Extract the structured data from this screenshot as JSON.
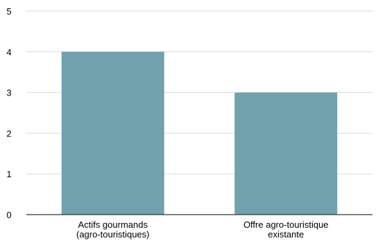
{
  "chart_data": {
    "type": "bar",
    "categories": [
      [
        "Actifs gourmands",
        "(agro-touristiques)"
      ],
      [
        "Offre agro-touristique",
        "existante"
      ]
    ],
    "values": [
      4,
      3
    ],
    "ylim": [
      0,
      5
    ],
    "yticks": [
      0,
      1,
      2,
      3,
      4,
      5
    ],
    "title": "",
    "xlabel": "",
    "ylabel": "",
    "grid": true,
    "legend": "none",
    "bar_color": "#71A2AE",
    "grid_color": "#D9D9D9",
    "axis_color": "#333333",
    "text_color": "#000000"
  }
}
